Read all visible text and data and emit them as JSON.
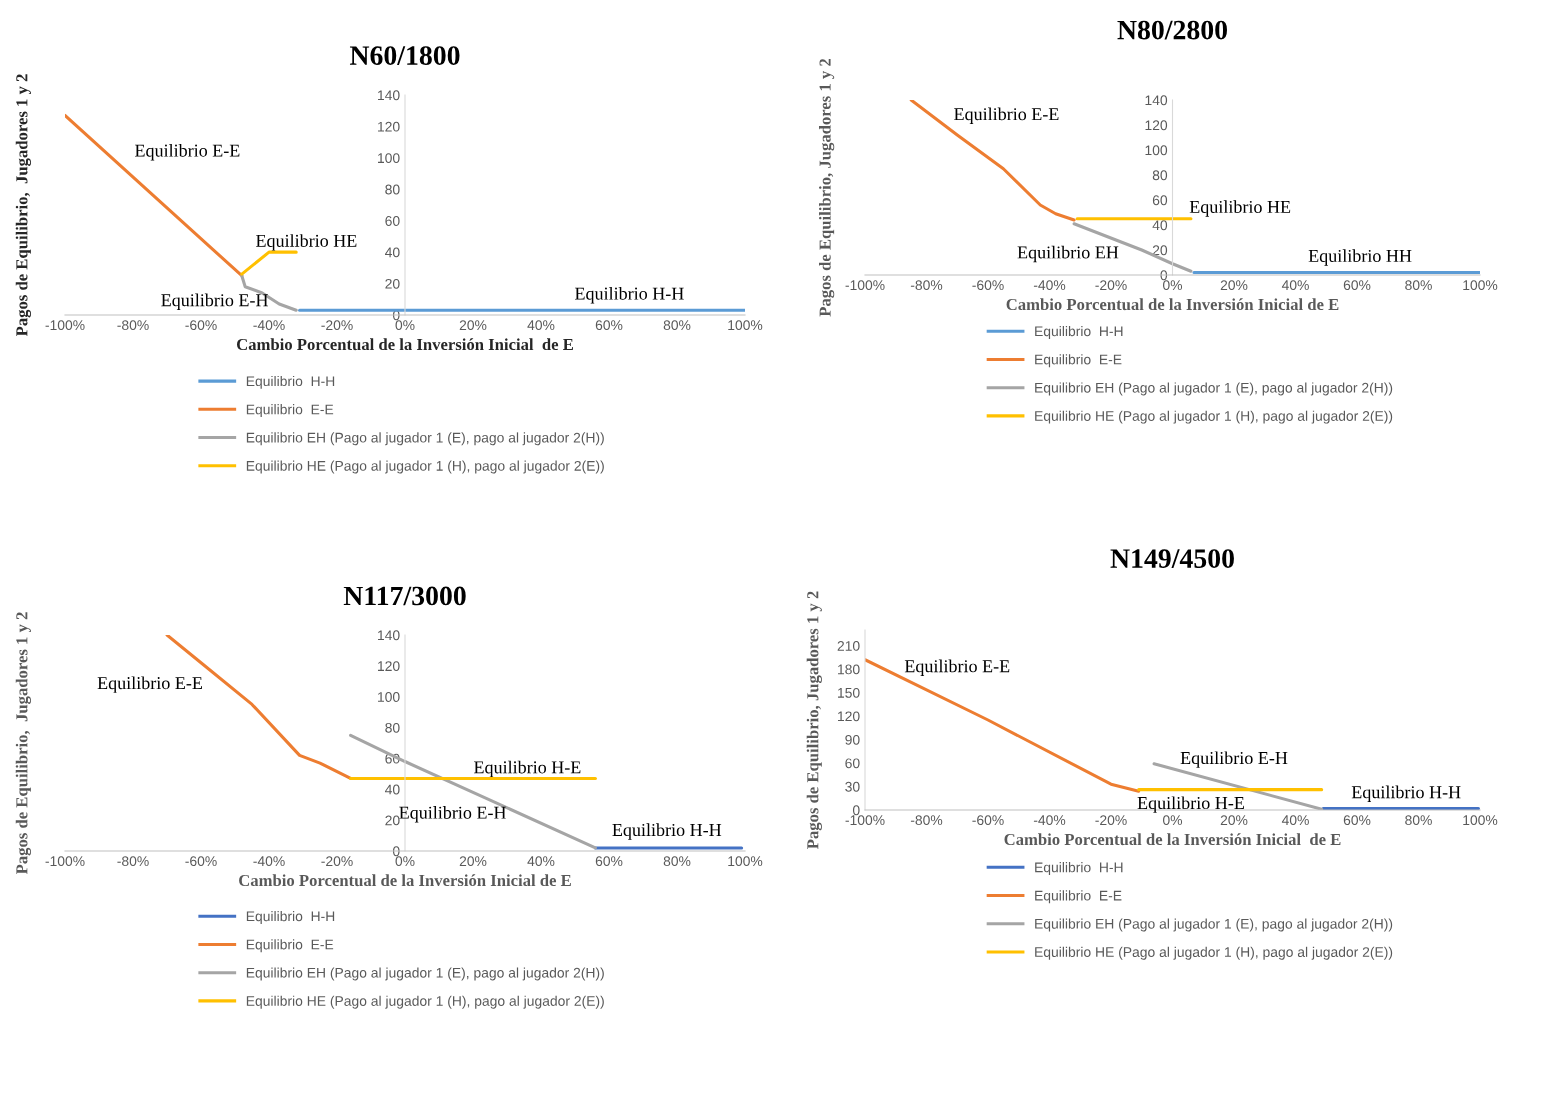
{
  "chart_data": [
    {
      "type": "line",
      "title": "N60/1800",
      "xlabel": "Cambio Porcentual de la Inversión Inicial  de E",
      "ylabel": "Pagos de Equilibrio,  Jugadores 1 y 2",
      "xlim": [
        -1,
        1
      ],
      "xticks": [
        {
          "value": -1,
          "label": "-100%"
        },
        {
          "value": -0.8,
          "label": "-80%"
        },
        {
          "value": -0.6,
          "label": "-60%"
        },
        {
          "value": -0.4,
          "label": "-40%"
        },
        {
          "value": -0.2,
          "label": "-20%"
        },
        {
          "value": 0,
          "label": "0%"
        },
        {
          "value": 0.2,
          "label": "20%"
        },
        {
          "value": 0.4,
          "label": "40%"
        },
        {
          "value": 0.6,
          "label": "60%"
        },
        {
          "value": 0.8,
          "label": "80%"
        },
        {
          "value": 1,
          "label": "100%"
        }
      ],
      "ylim": [
        0,
        140
      ],
      "yticks": [
        0,
        20,
        40,
        60,
        80,
        100,
        120,
        140
      ],
      "grid": false,
      "legend": "bottom",
      "marker": "none",
      "line_style": "solid",
      "series": [
        {
          "name": "Equilibrio  H-H",
          "color": "#5b9bd5",
          "x": [
            -0.31,
            1.0
          ],
          "values": [
            3,
            3
          ]
        },
        {
          "name": "Equilibrio  E-E",
          "color": "#ed7d31",
          "x": [
            -1,
            -0.48
          ],
          "values": [
            127,
            25
          ]
        },
        {
          "name": "Equilibrio EH (Pago al jugador 1 (E), pago al jugador 2(H))",
          "color": "#a5a5a5",
          "x": [
            -0.48,
            -0.47,
            -0.42,
            -0.37,
            -0.32
          ],
          "values": [
            25,
            18,
            14,
            7,
            3
          ]
        },
        {
          "name": "Equilibrio HE (Pago al jugador 1 (H), pago al jugador 2(E))",
          "color": "#ffc000",
          "x": [
            -0.48,
            -0.4,
            -0.32
          ],
          "values": [
            26,
            40,
            40
          ]
        }
      ],
      "annotations": [
        "Equilibrio E-E",
        "Equilibrio HE",
        "Equilibrio E-H",
        "Equilibrio H-H"
      ]
    },
    {
      "type": "line",
      "title": "N80/2800",
      "xlabel": "Cambio Porcentual de la Inversión Inicial de E",
      "ylabel": "Pagos de Equilibrio, Jugadores 1 y 2",
      "xlim": [
        -1,
        1
      ],
      "xticks": [
        {
          "value": -1,
          "label": "-100%"
        },
        {
          "value": -0.8,
          "label": "-80%"
        },
        {
          "value": -0.6,
          "label": "-60%"
        },
        {
          "value": -0.4,
          "label": "-40%"
        },
        {
          "value": -0.2,
          "label": "-20%"
        },
        {
          "value": 0,
          "label": "0%"
        },
        {
          "value": 0.2,
          "label": "20%"
        },
        {
          "value": 0.4,
          "label": "40%"
        },
        {
          "value": 0.6,
          "label": "60%"
        },
        {
          "value": 0.8,
          "label": "80%"
        },
        {
          "value": 1,
          "label": "100%"
        }
      ],
      "ylim": [
        0,
        140
      ],
      "yticks": [
        0,
        20,
        40,
        60,
        80,
        100,
        120,
        140
      ],
      "grid": false,
      "legend": "bottom",
      "marker": "none",
      "line_style": "solid",
      "series": [
        {
          "name": "Equilibrio  H-H",
          "color": "#5b9bd5",
          "x": [
            0.07,
            1.0
          ],
          "values": [
            2,
            2
          ]
        },
        {
          "name": "Equilibrio  E-E",
          "color": "#ed7d31",
          "x": [
            -0.85,
            -0.7,
            -0.55,
            -0.43,
            -0.38,
            -0.32
          ],
          "values": [
            140,
            112,
            85,
            56,
            49,
            44
          ]
        },
        {
          "name": "Equilibrio EH (Pago al jugador 1 (E), pago al jugador 2(H))",
          "color": "#a5a5a5",
          "x": [
            -0.32,
            -0.1,
            0.0,
            0.06
          ],
          "values": [
            41,
            20,
            9,
            3
          ]
        },
        {
          "name": "Equilibrio HE (Pago al jugador 1 (H), pago al jugador 2(E))",
          "color": "#ffc000",
          "x": [
            -0.31,
            0.06
          ],
          "values": [
            45,
            45
          ]
        }
      ],
      "annotations": [
        "Equilibrio E-E",
        "Equilibrio HE",
        "Equilibrio EH",
        "Equilibrio HH"
      ]
    },
    {
      "type": "line",
      "title": "N117/3000",
      "xlabel": "Cambio Porcentual de la Inversión Inicial de E",
      "ylabel": "Pagos de Equilibrio,  Jugadores 1 y 2",
      "xlim": [
        -1,
        1
      ],
      "xticks": [
        {
          "value": -1,
          "label": "-100%"
        },
        {
          "value": -0.8,
          "label": "-80%"
        },
        {
          "value": -0.6,
          "label": "-60%"
        },
        {
          "value": -0.4,
          "label": "-40%"
        },
        {
          "value": -0.2,
          "label": "-20%"
        },
        {
          "value": 0,
          "label": "0%"
        },
        {
          "value": 0.2,
          "label": "20%"
        },
        {
          "value": 0.4,
          "label": "40%"
        },
        {
          "value": 0.6,
          "label": "60%"
        },
        {
          "value": 0.8,
          "label": "80%"
        },
        {
          "value": 1,
          "label": "100%"
        }
      ],
      "ylim": [
        0,
        140
      ],
      "yticks": [
        0,
        20,
        40,
        60,
        80,
        100,
        120,
        140
      ],
      "grid": false,
      "legend": "bottom",
      "marker": "none",
      "line_style": "solid",
      "series": [
        {
          "name": "Equilibrio  H-H",
          "color": "#4472c4",
          "x": [
            0.56,
            0.99
          ],
          "values": [
            2,
            2
          ]
        },
        {
          "name": "Equilibrio  E-E",
          "color": "#ed7d31",
          "x": [
            -0.7,
            -0.6,
            -0.45,
            -0.31,
            -0.25,
            -0.16
          ],
          "values": [
            140,
            122,
            95,
            62,
            57,
            47
          ]
        },
        {
          "name": "Equilibrio EH (Pago al jugador 1 (E), pago al jugador 2(H))",
          "color": "#a5a5a5",
          "x": [
            -0.16,
            0.0,
            0.56
          ],
          "values": [
            75,
            58,
            2
          ]
        },
        {
          "name": "Equilibrio HE (Pago al jugador 1 (H), pago al jugador 2(E))",
          "color": "#ffc000",
          "x": [
            -0.16,
            0.56
          ],
          "values": [
            47,
            47
          ]
        }
      ],
      "annotations": [
        "Equilibrio E-E",
        "Equilibrio H-E",
        "Equilibrio E-H",
        "Equilibrio H-H"
      ]
    },
    {
      "type": "line",
      "title": "N149/4500",
      "xlabel": "Cambio Porcentual de la Inversión Inicial  de E",
      "ylabel": "Pagos de Equilibrio, Jugadores 1 y 2",
      "xlim": [
        -1,
        1
      ],
      "xticks": [
        {
          "value": -1,
          "label": "-100%"
        },
        {
          "value": -0.8,
          "label": "-80%"
        },
        {
          "value": -0.6,
          "label": "-60%"
        },
        {
          "value": -0.4,
          "label": "-40%"
        },
        {
          "value": -0.2,
          "label": "-20%"
        },
        {
          "value": 0,
          "label": "0%"
        },
        {
          "value": 0.2,
          "label": "20%"
        },
        {
          "value": 0.4,
          "label": "40%"
        },
        {
          "value": 0.6,
          "label": "60%"
        },
        {
          "value": 0.8,
          "label": "80%"
        },
        {
          "value": 1,
          "label": "100%"
        }
      ],
      "ylim": [
        0,
        230
      ],
      "yticks": [
        0,
        30,
        60,
        90,
        120,
        150,
        180,
        210
      ],
      "grid": false,
      "legend": "bottom",
      "marker": "none",
      "line_style": "solid",
      "series": [
        {
          "name": "Equilibrio  H-H",
          "color": "#4472c4",
          "x": [
            0.49,
            0.995
          ],
          "values": [
            2,
            2
          ]
        },
        {
          "name": "Equilibrio  E-E",
          "color": "#ed7d31",
          "x": [
            -1,
            -0.6,
            -0.2,
            -0.11
          ],
          "values": [
            192,
            115,
            33,
            24
          ]
        },
        {
          "name": "Equilibrio EH (Pago al jugador 1 (E), pago al jugador 2(H))",
          "color": "#a5a5a5",
          "x": [
            -0.06,
            0.485
          ],
          "values": [
            59,
            1
          ]
        },
        {
          "name": "Equilibrio HE (Pago al jugador 1 (H), pago al jugador 2(E))",
          "color": "#ffc000",
          "x": [
            -0.11,
            0.485
          ],
          "values": [
            26,
            26
          ]
        }
      ],
      "annotations": [
        "Equilibrio E-E",
        "Equilibrio E-H",
        "Equilibrio H-E",
        "Equilibrio H-H"
      ]
    }
  ]
}
